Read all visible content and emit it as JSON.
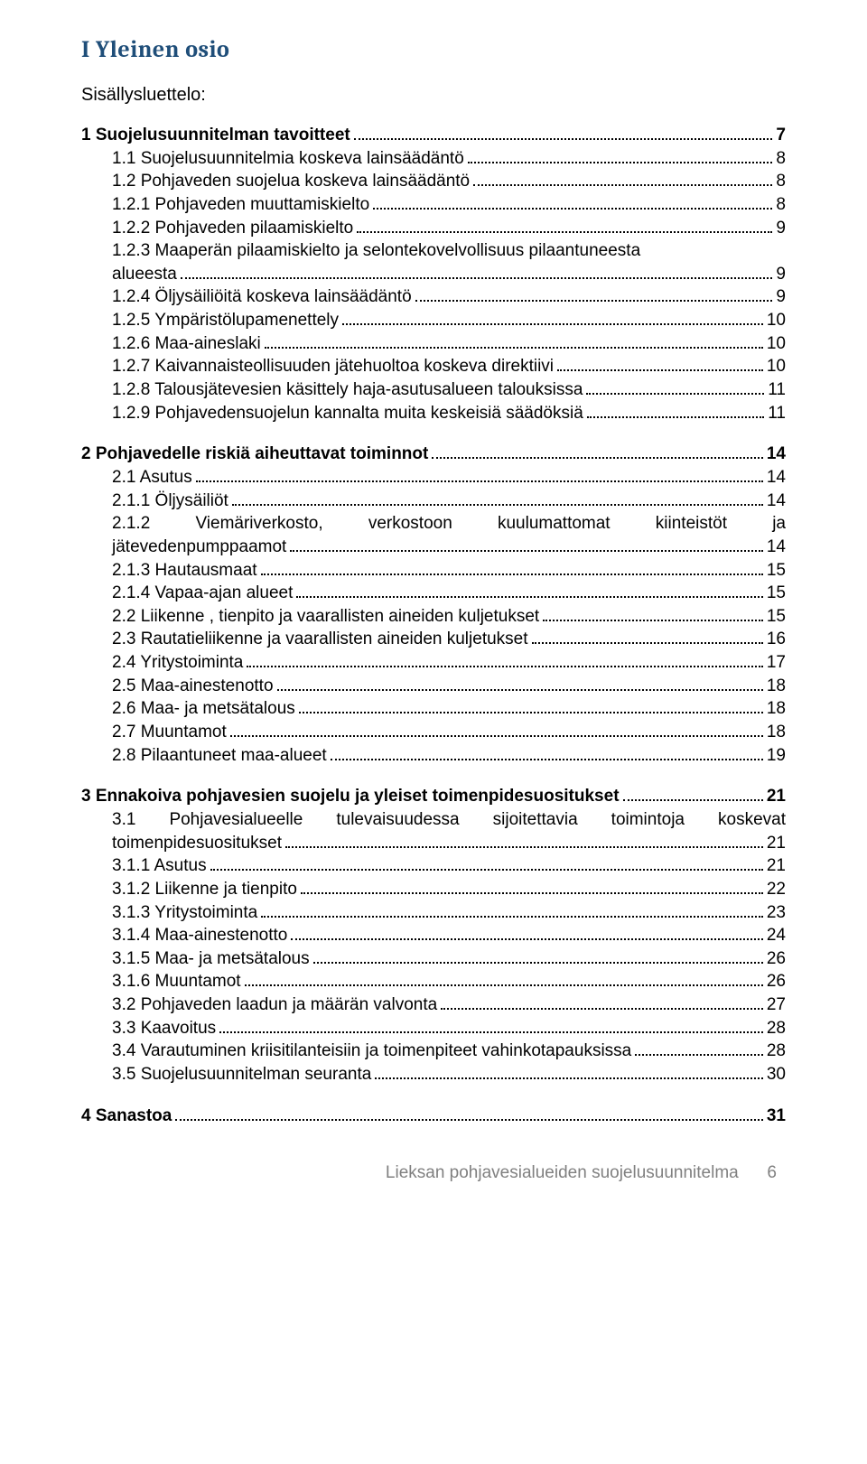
{
  "title": "I Yleinen osio",
  "subtitle": "Sisällysluettelo:",
  "footer_text": "Lieksan pohjavesialueiden suojelusuunnitelma",
  "footer_page": "6",
  "toc": [
    {
      "type": "simple",
      "bold": true,
      "indent": false,
      "label": "1 Suojelusuunnitelman tavoitteet",
      "page": "7"
    },
    {
      "type": "simple",
      "bold": false,
      "indent": true,
      "label": "1.1 Suojelusuunnitelmia koskeva lainsäädäntö",
      "page": "8"
    },
    {
      "type": "simple",
      "bold": false,
      "indent": true,
      "label": "1.2 Pohjaveden suojelua koskeva lainsäädäntö",
      "page": "8"
    },
    {
      "type": "simple",
      "bold": false,
      "indent": true,
      "label": "1.2.1 Pohjaveden muuttamiskielto",
      "page": "8"
    },
    {
      "type": "simple",
      "bold": false,
      "indent": true,
      "label": "1.2.2 Pohjaveden pilaamiskielto",
      "page": "9"
    },
    {
      "type": "multi",
      "bold": false,
      "indent": true,
      "line1": "1.2.3 Maaperän pilaamiskielto ja selontekovelvollisuus pilaantuneesta",
      "line2": "alueesta",
      "page": "9"
    },
    {
      "type": "simple",
      "bold": false,
      "indent": true,
      "label": "1.2.4 Öljysäiliöitä koskeva lainsäädäntö",
      "page": "9"
    },
    {
      "type": "simple",
      "bold": false,
      "indent": true,
      "label": "1.2.5 Ympäristölupamenettely",
      "page": "10"
    },
    {
      "type": "simple",
      "bold": false,
      "indent": true,
      "label": "1.2.6 Maa-aineslaki",
      "page": "10"
    },
    {
      "type": "simple",
      "bold": false,
      "indent": true,
      "label": "1.2.7 Kaivannaisteollisuuden jätehuoltoa koskeva direktiivi",
      "page": "10"
    },
    {
      "type": "simple",
      "bold": false,
      "indent": true,
      "label": "1.2.8 Talousjätevesien käsittely haja-asutusalueen talouksissa",
      "page": "11"
    },
    {
      "type": "simple",
      "bold": false,
      "indent": true,
      "label": "1.2.9 Pohjavedensuojelun kannalta muita keskeisiä säädöksiä",
      "page": "11"
    },
    {
      "type": "gap"
    },
    {
      "type": "simple",
      "bold": true,
      "indent": false,
      "label": "2 Pohjavedelle riskiä aiheuttavat toiminnot",
      "page": "14"
    },
    {
      "type": "simple",
      "bold": false,
      "indent": true,
      "label": "2.1 Asutus",
      "page": "14"
    },
    {
      "type": "simple",
      "bold": false,
      "indent": true,
      "label": "2.1.1 Öljysäiliöt",
      "page": "14"
    },
    {
      "type": "multi_justify",
      "bold": false,
      "indent": true,
      "line1": "2.1.2   Viemäriverkosto,   verkostoon   kuulumattomat   kiinteistöt   ja",
      "line2": "jätevedenpumppaamot",
      "page": "14"
    },
    {
      "type": "simple",
      "bold": false,
      "indent": true,
      "label": "2.1.3 Hautausmaat",
      "page": "15"
    },
    {
      "type": "simple",
      "bold": false,
      "indent": true,
      "label": "2.1.4 Vapaa-ajan alueet",
      "page": "15"
    },
    {
      "type": "simple",
      "bold": false,
      "indent": true,
      "label": "2.2 Liikenne , tienpito ja vaarallisten aineiden kuljetukset",
      "page": "15"
    },
    {
      "type": "simple",
      "bold": false,
      "indent": true,
      "label": "2.3 Rautatieliikenne ja vaarallisten aineiden kuljetukset",
      "page": "16"
    },
    {
      "type": "simple",
      "bold": false,
      "indent": true,
      "label": "2.4 Yritystoiminta",
      "page": "17"
    },
    {
      "type": "simple",
      "bold": false,
      "indent": true,
      "label": "2.5 Maa-ainestenotto",
      "page": "18"
    },
    {
      "type": "simple",
      "bold": false,
      "indent": true,
      "label": "2.6 Maa- ja metsätalous",
      "page": "18"
    },
    {
      "type": "simple",
      "bold": false,
      "indent": true,
      "label": "2.7 Muuntamot",
      "page": "18"
    },
    {
      "type": "simple",
      "bold": false,
      "indent": true,
      "label": "2.8 Pilaantuneet maa-alueet",
      "page": "19"
    },
    {
      "type": "gap"
    },
    {
      "type": "simple",
      "bold": true,
      "indent": false,
      "label": "3 Ennakoiva pohjavesien suojelu ja yleiset toimenpidesuositukset",
      "page": "21"
    },
    {
      "type": "multi_justify",
      "bold": false,
      "indent": true,
      "line1": "3.1  Pohjavesialueelle  tulevaisuudessa  sijoitettavia  toimintoja  koskevat",
      "line2": "toimenpidesuositukset",
      "page": "21"
    },
    {
      "type": "simple",
      "bold": false,
      "indent": true,
      "label": "3.1.1 Asutus",
      "page": "21"
    },
    {
      "type": "simple",
      "bold": false,
      "indent": true,
      "label": "3.1.2 Liikenne ja tienpito",
      "page": "22"
    },
    {
      "type": "simple",
      "bold": false,
      "indent": true,
      "label": "3.1.3 Yritystoiminta",
      "page": "23"
    },
    {
      "type": "simple",
      "bold": false,
      "indent": true,
      "label": "3.1.4 Maa-ainestenotto",
      "page": "24"
    },
    {
      "type": "simple",
      "bold": false,
      "indent": true,
      "label": "3.1.5 Maa- ja metsätalous",
      "page": "26"
    },
    {
      "type": "simple",
      "bold": false,
      "indent": true,
      "label": "3.1.6 Muuntamot",
      "page": "26"
    },
    {
      "type": "simple",
      "bold": false,
      "indent": true,
      "label": "3.2 Pohjaveden laadun ja määrän valvonta",
      "page": "27"
    },
    {
      "type": "simple",
      "bold": false,
      "indent": true,
      "label": "3.3 Kaavoitus",
      "page": "28"
    },
    {
      "type": "simple",
      "bold": false,
      "indent": true,
      "label": "3.4 Varautuminen kriisitilanteisiin ja toimenpiteet vahinkotapauksissa",
      "page": "28"
    },
    {
      "type": "simple",
      "bold": false,
      "indent": true,
      "label": "3.5 Suojelusuunnitelman seuranta",
      "page": "30"
    },
    {
      "type": "gap"
    },
    {
      "type": "simple",
      "bold": true,
      "indent": false,
      "label": "4 Sanastoa",
      "page": "31"
    }
  ]
}
